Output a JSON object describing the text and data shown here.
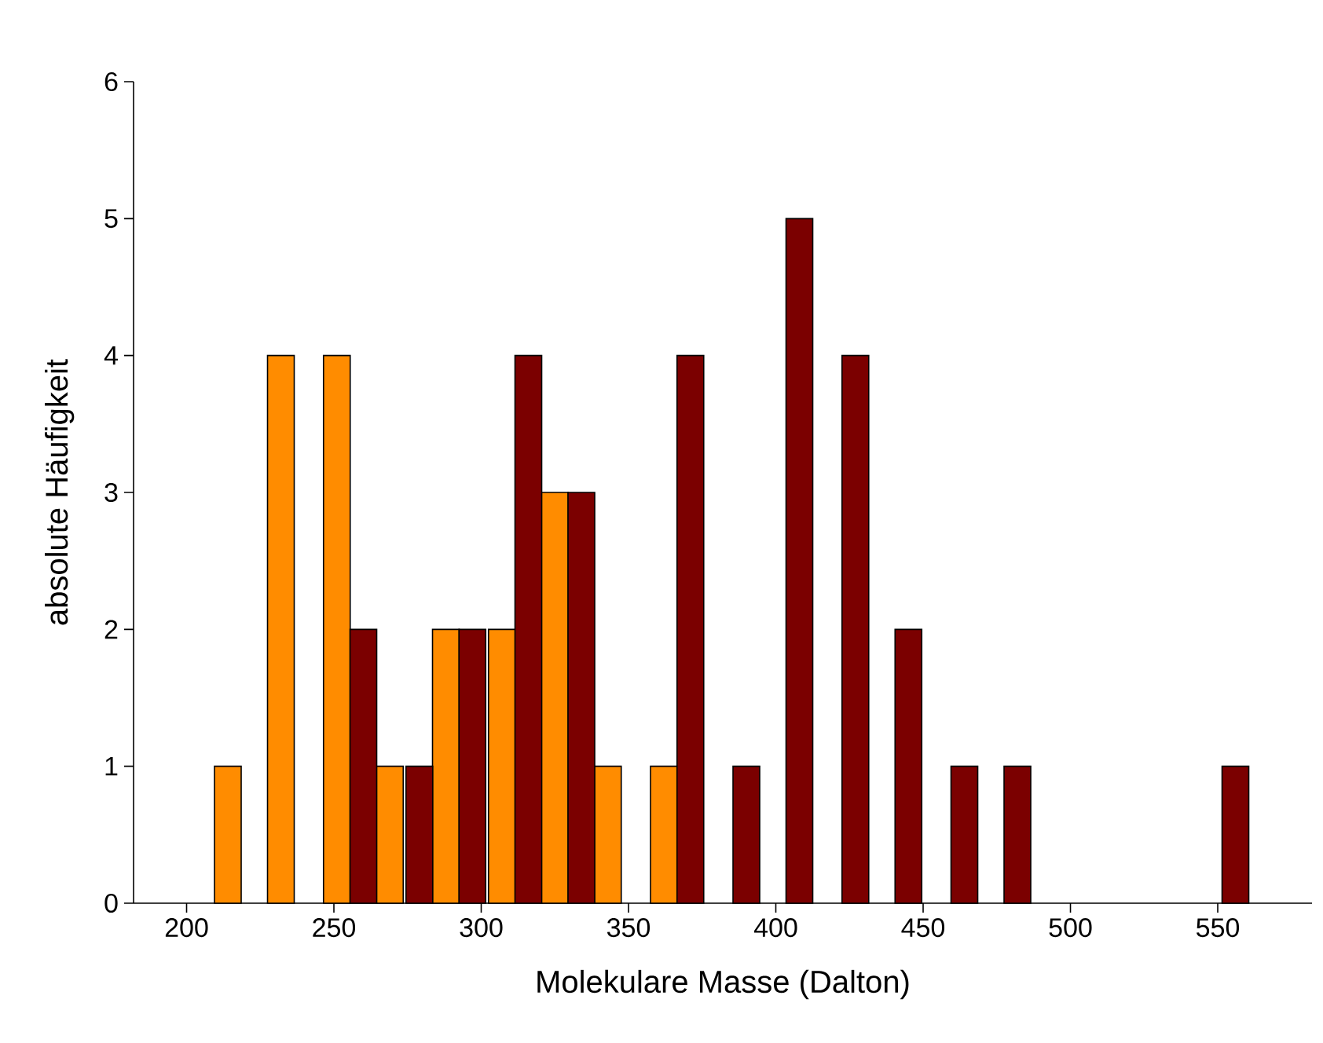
{
  "chart_data": {
    "type": "bar",
    "xlabel": "Molekulare Masse (Dalton)",
    "ylabel": "absolute Häufigkeit",
    "xlim": [
      182,
      582
    ],
    "xticks": [
      200,
      250,
      300,
      350,
      400,
      450,
      500,
      550
    ],
    "ylim": [
      0,
      6
    ],
    "yticks": [
      0,
      1,
      2,
      3,
      4,
      5,
      6
    ],
    "series": [
      {
        "color": "#ff8c00",
        "x": [
          214,
          232,
          251,
          269,
          288,
          307,
          325,
          343,
          362
        ],
        "values": [
          1,
          4,
          4,
          1,
          2,
          2,
          3,
          1,
          1
        ]
      },
      {
        "color": "#7b0000",
        "x": [
          260,
          279,
          297,
          316,
          334,
          371,
          390,
          408,
          427,
          445,
          464,
          482,
          556
        ],
        "values": [
          2,
          1,
          2,
          4,
          3,
          4,
          1,
          5,
          4,
          2,
          1,
          1,
          1
        ]
      }
    ]
  }
}
